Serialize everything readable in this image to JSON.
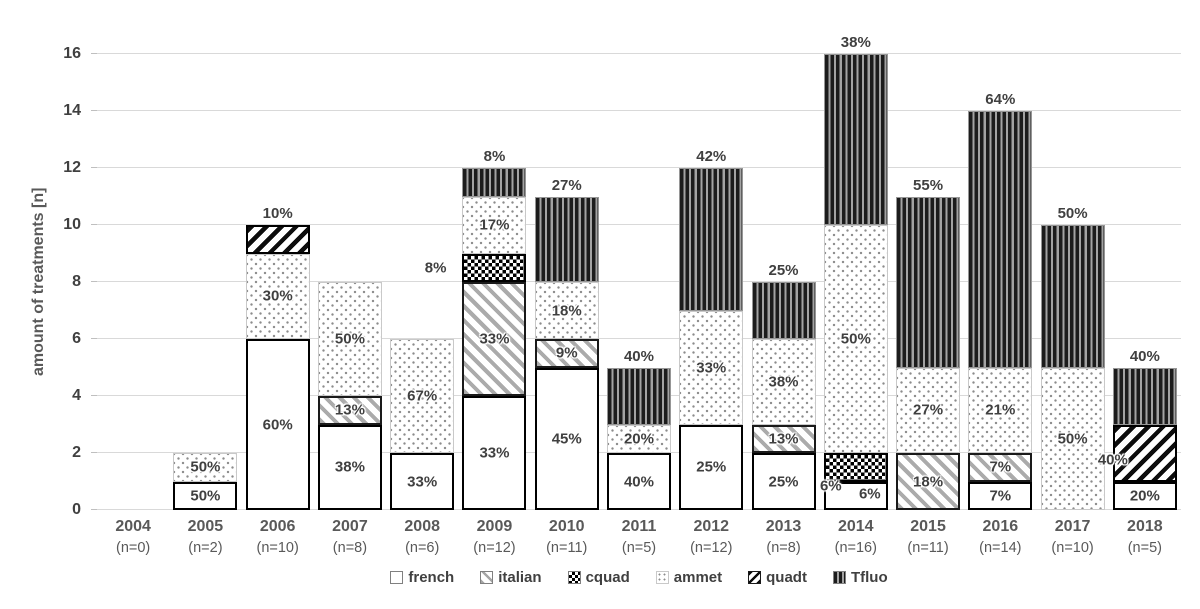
{
  "chart_data": {
    "type": "bar",
    "stacked": true,
    "title": "",
    "ylabel": "amount of treatments [n]",
    "xlabel": "",
    "ylim": [
      0,
      16
    ],
    "yticks": [
      0,
      2,
      4,
      6,
      8,
      10,
      12,
      14,
      16
    ],
    "grid": "horizontal",
    "legend_position": "bottom-center",
    "legend": [
      "french",
      "italian",
      "cquad",
      "ammet",
      "quadt",
      "Tfluo"
    ],
    "bars": [
      {
        "year": "2004",
        "n_label": "(n=0)",
        "total": 0,
        "segments": []
      },
      {
        "year": "2005",
        "n_label": "(n=2)",
        "total": 2,
        "segments": [
          {
            "series": "french",
            "value": 1,
            "label": "50%",
            "placement": "inside"
          },
          {
            "series": "ammet",
            "value": 1,
            "label": "50%",
            "placement": "inside"
          }
        ]
      },
      {
        "year": "2006",
        "n_label": "(n=10)",
        "total": 10,
        "segments": [
          {
            "series": "french",
            "value": 6,
            "label": "60%",
            "placement": "inside"
          },
          {
            "series": "ammet",
            "value": 3,
            "label": "30%",
            "placement": "inside"
          },
          {
            "series": "quadt",
            "value": 1,
            "label": "10%",
            "placement": "above"
          }
        ]
      },
      {
        "year": "2007",
        "n_label": "(n=8)",
        "total": 8,
        "segments": [
          {
            "series": "french",
            "value": 3,
            "label": "38%",
            "placement": "inside"
          },
          {
            "series": "italian",
            "value": 1,
            "label": "13%",
            "placement": "inside"
          },
          {
            "series": "ammet",
            "value": 4,
            "label": "50%",
            "placement": "inside"
          }
        ]
      },
      {
        "year": "2008",
        "n_label": "(n=6)",
        "total": 6,
        "segments": [
          {
            "series": "french",
            "value": 2,
            "label": "33%",
            "placement": "inside"
          },
          {
            "series": "ammet",
            "value": 4,
            "label": "67%",
            "placement": "inside"
          }
        ]
      },
      {
        "year": "2009",
        "n_label": "(n=12)",
        "total": 12,
        "segments": [
          {
            "series": "french",
            "value": 4,
            "label": "33%",
            "placement": "inside"
          },
          {
            "series": "italian",
            "value": 4,
            "label": "33%",
            "placement": "inside"
          },
          {
            "series": "cquad",
            "value": 1,
            "label": "8%",
            "placement": "outside-left",
            "gap": 16
          },
          {
            "series": "ammet",
            "value": 2,
            "label": "17%",
            "placement": "inside"
          },
          {
            "series": "Tfluo",
            "value": 1,
            "label": "8%",
            "placement": "above"
          }
        ]
      },
      {
        "year": "2010",
        "n_label": "(n=11)",
        "total": 11,
        "segments": [
          {
            "series": "french",
            "value": 5,
            "label": "45%",
            "placement": "inside"
          },
          {
            "series": "italian",
            "value": 1,
            "label": "9%",
            "placement": "inside"
          },
          {
            "series": "ammet",
            "value": 2,
            "label": "18%",
            "placement": "inside"
          },
          {
            "series": "Tfluo",
            "value": 3,
            "label": "27%",
            "placement": "above"
          }
        ]
      },
      {
        "year": "2011",
        "n_label": "(n=5)",
        "total": 5,
        "segments": [
          {
            "series": "french",
            "value": 2,
            "label": "40%",
            "placement": "inside"
          },
          {
            "series": "ammet",
            "value": 1,
            "label": "20%",
            "placement": "inside"
          },
          {
            "series": "Tfluo",
            "value": 2,
            "label": "40%",
            "placement": "above"
          }
        ]
      },
      {
        "year": "2012",
        "n_label": "(n=12)",
        "total": 12,
        "segments": [
          {
            "series": "french",
            "value": 3,
            "label": "25%",
            "placement": "inside"
          },
          {
            "series": "ammet",
            "value": 4,
            "label": "33%",
            "placement": "inside"
          },
          {
            "series": "Tfluo",
            "value": 5,
            "label": "42%",
            "placement": "above"
          }
        ]
      },
      {
        "year": "2013",
        "n_label": "(n=8)",
        "total": 8,
        "segments": [
          {
            "series": "french",
            "value": 2,
            "label": "25%",
            "placement": "inside"
          },
          {
            "series": "italian",
            "value": 1,
            "label": "13%",
            "placement": "inside"
          },
          {
            "series": "ammet",
            "value": 3,
            "label": "38%",
            "placement": "inside"
          },
          {
            "series": "Tfluo",
            "value": 2,
            "label": "25%",
            "placement": "above"
          }
        ]
      },
      {
        "year": "2014",
        "n_label": "(n=16)",
        "total": 16,
        "segments": [
          {
            "series": "french",
            "value": 1,
            "label": "6%",
            "placement": "inside",
            "dx": 14,
            "dy": -2
          },
          {
            "series": "cquad",
            "value": 1,
            "label": "6%",
            "placement": "edge-left",
            "dx": 7,
            "dy": 19
          },
          {
            "series": "ammet",
            "value": 8,
            "label": "50%",
            "placement": "inside"
          },
          {
            "series": "Tfluo",
            "value": 6,
            "label": "38%",
            "placement": "above"
          }
        ]
      },
      {
        "year": "2015",
        "n_label": "(n=11)",
        "total": 11,
        "segments": [
          {
            "series": "italian",
            "value": 2,
            "label": "18%",
            "placement": "inside"
          },
          {
            "series": "ammet",
            "value": 3,
            "label": "27%",
            "placement": "inside"
          },
          {
            "series": "Tfluo",
            "value": 6,
            "label": "55%",
            "placement": "above"
          }
        ]
      },
      {
        "year": "2016",
        "n_label": "(n=14)",
        "total": 14,
        "segments": [
          {
            "series": "french",
            "value": 1,
            "label": "7%",
            "placement": "inside"
          },
          {
            "series": "italian",
            "value": 1,
            "label": "7%",
            "placement": "inside"
          },
          {
            "series": "ammet",
            "value": 3,
            "label": "21%",
            "placement": "inside"
          },
          {
            "series": "Tfluo",
            "value": 9,
            "label": "64%",
            "placement": "above"
          }
        ]
      },
      {
        "year": "2017",
        "n_label": "(n=10)",
        "total": 10,
        "segments": [
          {
            "series": "ammet",
            "value": 5,
            "label": "50%",
            "placement": "inside"
          },
          {
            "series": "Tfluo",
            "value": 5,
            "label": "50%",
            "placement": "above"
          }
        ]
      },
      {
        "year": "2018",
        "n_label": "(n=5)",
        "total": 5,
        "segments": [
          {
            "series": "french",
            "value": 1,
            "label": "20%",
            "placement": "inside"
          },
          {
            "series": "quadt",
            "value": 2,
            "label": "40%",
            "placement": "edge-left",
            "dx": 0,
            "dy": 7
          },
          {
            "series": "Tfluo",
            "value": 2,
            "label": "40%",
            "placement": "above"
          }
        ]
      }
    ],
    "colors": {
      "data_label": "#404040",
      "axis_text": "#595959",
      "gridline": "#d9d9d9",
      "pattern_dark": "#1a1a1a",
      "pattern_gray": "#ababab",
      "background": "#ffffff"
    }
  }
}
